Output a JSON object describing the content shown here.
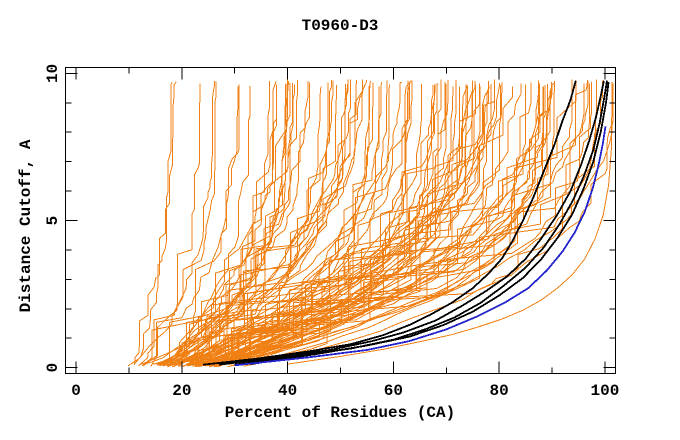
{
  "title": "T0960-D3",
  "chart_data": {
    "type": "line",
    "title": "T0960-D3",
    "xlabel": "Percent of Residues (CA)",
    "ylabel": "Distance Cutoff, A",
    "xlim": [
      -2,
      102
    ],
    "ylim": [
      -0.2,
      10.2
    ],
    "x_major_ticks": [
      0,
      20,
      40,
      60,
      80,
      100
    ],
    "x_minor_ticks": [
      10,
      30,
      50,
      70,
      90
    ],
    "y_major_ticks": [
      0,
      5,
      10
    ],
    "y_minor_ticks": [
      1,
      2,
      3,
      4,
      6,
      7,
      8,
      9
    ],
    "grid": false,
    "legend": "none",
    "frame_color": "#000000",
    "background": "#ffffff",
    "ensemble": {
      "name": "server-model-curves",
      "color": "#f08014",
      "count": 105,
      "seed": 20181204,
      "x_top_range": [
        15.5,
        101.3
      ],
      "x_start_range": [
        4,
        45
      ],
      "y_top_range": [
        9.55,
        9.8
      ],
      "style": "stepped-cumulative"
    },
    "lowest_ensemble_model": {
      "name": "best-server-model",
      "color": "#f08014",
      "points": [
        [
          40,
          0.12
        ],
        [
          50,
          0.38
        ],
        [
          58,
          0.62
        ],
        [
          65,
          0.88
        ],
        [
          71,
          1.12
        ],
        [
          76,
          1.38
        ],
        [
          80.5,
          1.65
        ],
        [
          84.5,
          1.95
        ],
        [
          88,
          2.3
        ],
        [
          91,
          2.7
        ],
        [
          93.8,
          3.15
        ],
        [
          96.2,
          3.7
        ],
        [
          98.2,
          4.4
        ],
        [
          99.7,
          5.2
        ],
        [
          100.7,
          6.2
        ],
        [
          101.2,
          7.4
        ],
        [
          101.3,
          8.6
        ],
        [
          101.3,
          9.7
        ]
      ]
    },
    "highlighted_models": [
      {
        "name": "highlighted-model-1",
        "color": "#000000",
        "points": [
          [
            24,
            0.1
          ],
          [
            34,
            0.3
          ],
          [
            44,
            0.55
          ],
          [
            52,
            0.8
          ],
          [
            58,
            1.1
          ],
          [
            63,
            1.45
          ],
          [
            67,
            1.8
          ],
          [
            71,
            2.2
          ],
          [
            75,
            2.7
          ],
          [
            78,
            3.2
          ],
          [
            80.5,
            3.7
          ],
          [
            82.5,
            4.3
          ],
          [
            84.5,
            5.0
          ],
          [
            86.5,
            5.8
          ],
          [
            88.5,
            6.7
          ],
          [
            90.5,
            7.6
          ],
          [
            92,
            8.4
          ],
          [
            93.5,
            9.1
          ],
          [
            94.5,
            9.75
          ]
        ]
      },
      {
        "name": "highlighted-model-2",
        "color": "#000000",
        "points": [
          [
            27,
            0.1
          ],
          [
            38,
            0.35
          ],
          [
            48,
            0.6
          ],
          [
            56,
            0.9
          ],
          [
            62,
            1.2
          ],
          [
            68,
            1.6
          ],
          [
            73,
            2.1
          ],
          [
            77.5,
            2.6
          ],
          [
            81.5,
            3.1
          ],
          [
            85,
            3.7
          ],
          [
            88,
            4.4
          ],
          [
            91,
            5.2
          ],
          [
            93.5,
            6.0
          ],
          [
            95.5,
            6.9
          ],
          [
            97,
            7.7
          ],
          [
            98.3,
            8.5
          ],
          [
            99.3,
            9.3
          ],
          [
            99.8,
            9.75
          ]
        ]
      },
      {
        "name": "highlighted-model-3",
        "color": "#000000",
        "points": [
          [
            30,
            0.1
          ],
          [
            42,
            0.4
          ],
          [
            52,
            0.65
          ],
          [
            60,
            0.95
          ],
          [
            66,
            1.3
          ],
          [
            71.5,
            1.7
          ],
          [
            76.5,
            2.2
          ],
          [
            81,
            2.8
          ],
          [
            85,
            3.4
          ],
          [
            88.5,
            4.1
          ],
          [
            91.5,
            4.9
          ],
          [
            94,
            5.7
          ],
          [
            96,
            6.5
          ],
          [
            97.8,
            7.4
          ],
          [
            99,
            8.3
          ],
          [
            99.9,
            9.2
          ],
          [
            100.4,
            9.75
          ]
        ]
      },
      {
        "name": "highlighted-model-4",
        "color": "#000000",
        "points": [
          [
            33,
            0.12
          ],
          [
            45,
            0.45
          ],
          [
            55,
            0.75
          ],
          [
            63,
            1.05
          ],
          [
            69.5,
            1.45
          ],
          [
            75,
            1.9
          ],
          [
            80,
            2.45
          ],
          [
            84.5,
            3.05
          ],
          [
            88,
            3.7
          ],
          [
            91,
            4.4
          ],
          [
            93.8,
            5.2
          ],
          [
            96,
            6.1
          ],
          [
            97.8,
            7.0
          ],
          [
            99.2,
            8.0
          ],
          [
            100.2,
            9.0
          ],
          [
            100.7,
            9.7
          ]
        ]
      }
    ],
    "reference_model": {
      "name": "reference-model",
      "color": "#2424cc",
      "points": [
        [
          30,
          0.08
        ],
        [
          44,
          0.35
        ],
        [
          55,
          0.6
        ],
        [
          63,
          0.9
        ],
        [
          70,
          1.3
        ],
        [
          76,
          1.75
        ],
        [
          81,
          2.2
        ],
        [
          85.5,
          2.7
        ],
        [
          89,
          3.3
        ],
        [
          92,
          3.95
        ],
        [
          94.3,
          4.6
        ],
        [
          96.2,
          5.3
        ],
        [
          97.7,
          6.1
        ],
        [
          98.8,
          6.9
        ],
        [
          99.6,
          7.6
        ],
        [
          100.1,
          8.2
        ]
      ]
    }
  }
}
